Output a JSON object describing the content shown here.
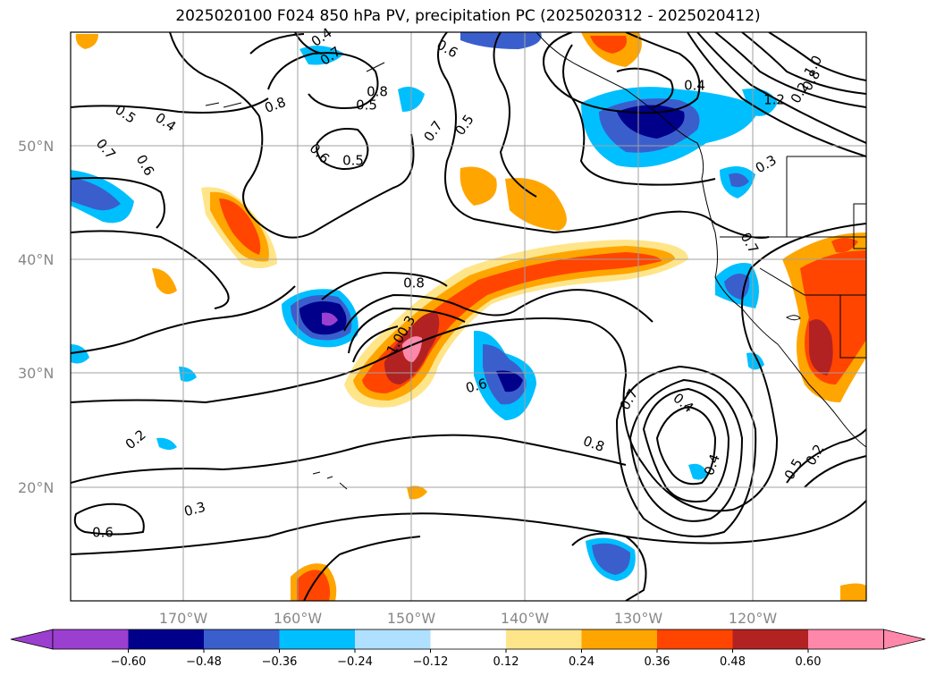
{
  "title": "2025020100 F024 850 hPa PV, precipitation PC (2025020312 - 2025020412)",
  "lat_labels": [
    "50°N",
    "40°N",
    "30°N",
    "20°N"
  ],
  "lon_labels": [
    "170°W",
    "160°W",
    "150°W",
    "140°W",
    "130°W",
    "120°W"
  ],
  "contour_labels": [
    "0.5",
    "0.4",
    "0.7",
    "0.6",
    "0.8",
    "0.5",
    "0.4",
    "0.7",
    "0.8",
    "0.6",
    "0.5",
    "0.7",
    "0.5",
    "0.6",
    "0.4",
    "1.2",
    "1.0",
    "0.8",
    "0.2",
    "0.3",
    "0.7",
    "0.8",
    "1.0",
    "0.3",
    "0.6",
    "0.7",
    "0.4",
    "0.8",
    "0.4",
    "0.5",
    "0.2",
    "0.2",
    "0.3",
    "0.6"
  ],
  "colorbar": {
    "ticks": [
      "−0.60",
      "−0.48",
      "−0.36",
      "−0.24",
      "−0.12",
      "0.12",
      "0.24",
      "0.36",
      "0.48",
      "0.60"
    ],
    "colors": [
      "#9b3fd0",
      "#00008b",
      "#3a5fcd",
      "#00bfff",
      "#b0e0ff",
      "#ffffff",
      "#ffe58a",
      "#ffa500",
      "#ff4500",
      "#b22222",
      "#ff88aa",
      "#ff88aa"
    ]
  }
}
